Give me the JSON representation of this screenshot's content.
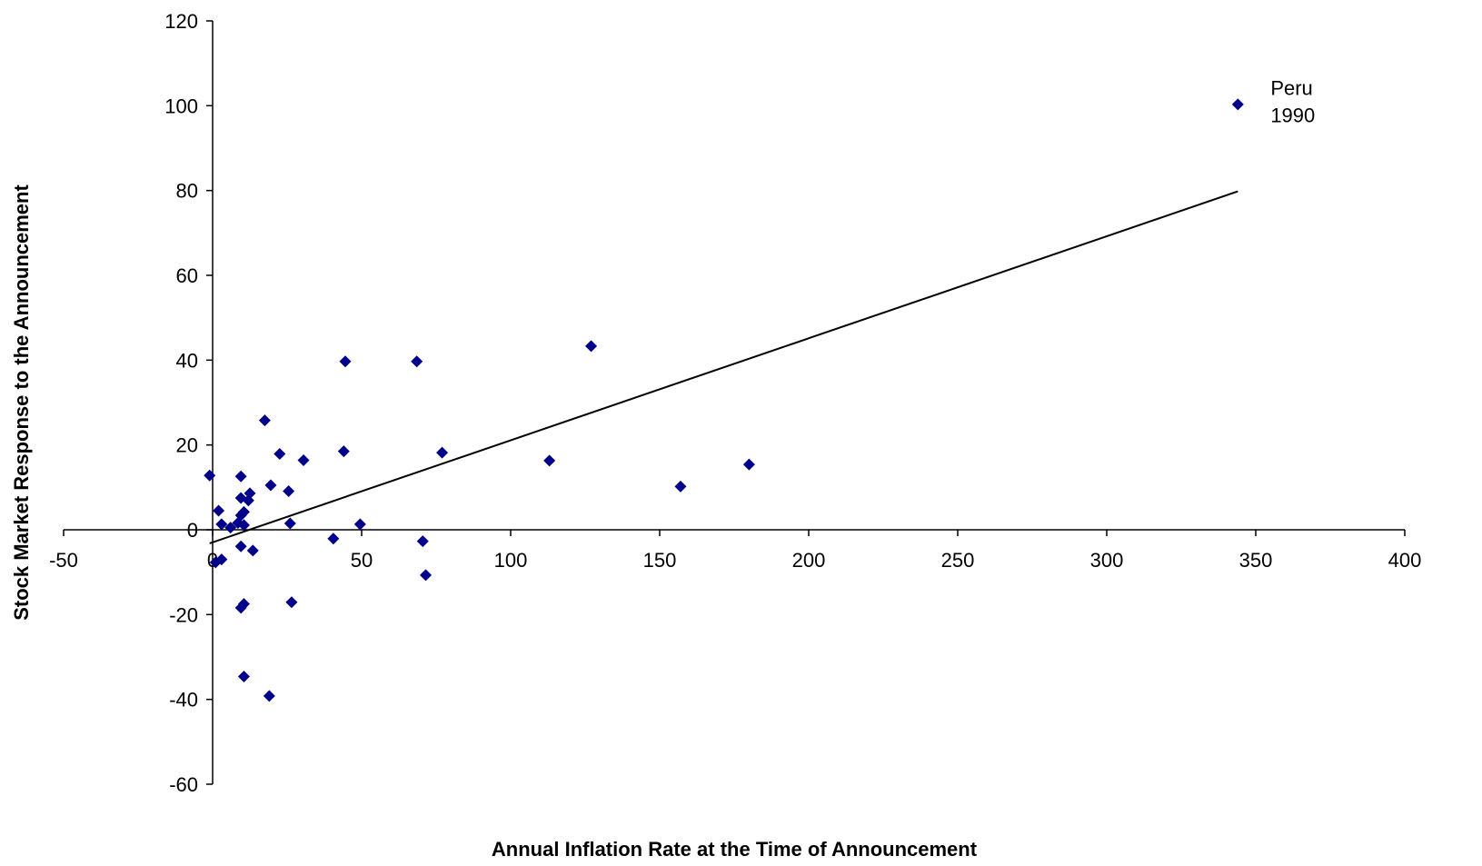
{
  "chart_data": {
    "type": "scatter",
    "title": "",
    "xlabel": "Annual Inflation Rate at the Time of Announcement",
    "ylabel": "Stock Market Response to the Announcement",
    "xlim": [
      -50,
      400
    ],
    "ylim": [
      -60,
      120
    ],
    "x_ticks": [
      -50,
      0,
      50,
      100,
      150,
      200,
      250,
      300,
      350,
      400
    ],
    "y_ticks": [
      -60,
      -40,
      -20,
      0,
      20,
      40,
      60,
      80,
      100,
      120
    ],
    "grid": false,
    "legend": "none",
    "marker_color": "#00008B",
    "trendline": {
      "x": [
        -1,
        344
      ],
      "y": [
        -3.2,
        79.8
      ],
      "color": "#000000"
    },
    "annotation": {
      "lines": [
        "Peru",
        "1990"
      ],
      "x": 344,
      "y": 100
    },
    "points": [
      {
        "x": 344,
        "y": 100.3
      },
      {
        "x": 127,
        "y": 43.3
      },
      {
        "x": 44.5,
        "y": 39.7
      },
      {
        "x": 68.5,
        "y": 39.7
      },
      {
        "x": 17.5,
        "y": 25.8
      },
      {
        "x": 22.5,
        "y": 17.9
      },
      {
        "x": 44,
        "y": 18.5
      },
      {
        "x": 77,
        "y": 18.2
      },
      {
        "x": 30.5,
        "y": 16.4
      },
      {
        "x": 113,
        "y": 16.3
      },
      {
        "x": 180,
        "y": 15.4
      },
      {
        "x": 157,
        "y": 10.2
      },
      {
        "x": -1,
        "y": 12.8
      },
      {
        "x": 9.5,
        "y": 12.6
      },
      {
        "x": 19.5,
        "y": 10.5
      },
      {
        "x": 25.5,
        "y": 9.1
      },
      {
        "x": 12.5,
        "y": 8.6
      },
      {
        "x": 9.5,
        "y": 7.5
      },
      {
        "x": 12,
        "y": 6.9
      },
      {
        "x": 2,
        "y": 4.5
      },
      {
        "x": 10.5,
        "y": 4.2
      },
      {
        "x": 9.5,
        "y": 3.4
      },
      {
        "x": 3,
        "y": 1.3
      },
      {
        "x": 26,
        "y": 1.5
      },
      {
        "x": 49.5,
        "y": 1.3
      },
      {
        "x": 10.5,
        "y": 1.1
      },
      {
        "x": 8.5,
        "y": 1.6
      },
      {
        "x": 6,
        "y": 0.5
      },
      {
        "x": 40.5,
        "y": -2.1
      },
      {
        "x": 70.5,
        "y": -2.7
      },
      {
        "x": 9.5,
        "y": -3.9
      },
      {
        "x": 13.5,
        "y": -4.9
      },
      {
        "x": 3,
        "y": -7.0
      },
      {
        "x": 1,
        "y": -7.7
      },
      {
        "x": 71.5,
        "y": -10.7
      },
      {
        "x": 26.5,
        "y": -17.1
      },
      {
        "x": 10.5,
        "y": -17.5
      },
      {
        "x": 9.5,
        "y": -18.4
      },
      {
        "x": 10.5,
        "y": -34.6
      },
      {
        "x": 19,
        "y": -39.2
      }
    ]
  }
}
